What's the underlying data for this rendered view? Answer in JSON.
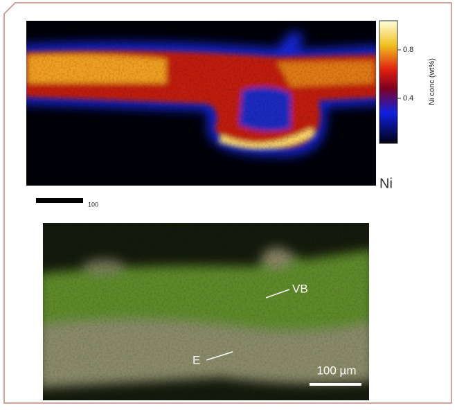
{
  "figure": {
    "top_panel": {
      "colorbar": {
        "label": "Ni conc (wt%)",
        "ticks": [
          "0.8",
          "0.4"
        ]
      },
      "element": "Ni",
      "scale_bar": "100"
    },
    "bottom_panel": {
      "labels": [
        "VB",
        "E"
      ],
      "scale_bar": "100 µm"
    }
  }
}
